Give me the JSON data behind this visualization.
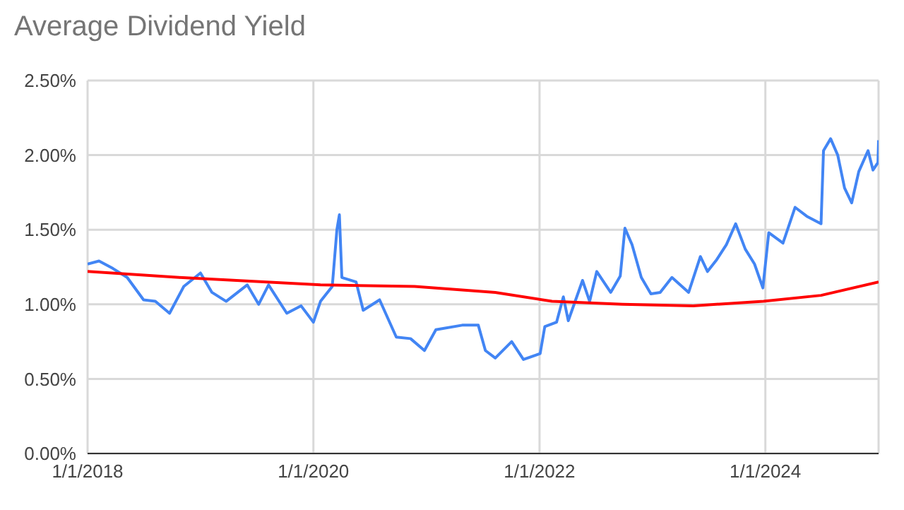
{
  "chart_data": {
    "type": "line",
    "title": "Average Dividend Yield",
    "xlim": [
      "2018-01-01",
      "2025-01-01"
    ],
    "xticks": [
      {
        "value": "2018-01-01",
        "label": "1/1/2018"
      },
      {
        "value": "2020-01-01",
        "label": "1/1/2020"
      },
      {
        "value": "2022-01-01",
        "label": "1/1/2022"
      },
      {
        "value": "2024-01-01",
        "label": "1/1/2024"
      }
    ],
    "ylim": [
      0,
      2.5
    ],
    "yticks": [
      {
        "value": 0,
        "label": "0.00%"
      },
      {
        "value": 0.5,
        "label": "0.50%"
      },
      {
        "value": 1,
        "label": "1.00%"
      },
      {
        "value": 1.5,
        "label": "1.50%"
      },
      {
        "value": 2,
        "label": "2.00%"
      },
      {
        "value": 2.5,
        "label": "2.50%"
      }
    ],
    "grid": true,
    "marker": "none",
    "line_style": "solid",
    "series": [
      {
        "color": "#4285f4",
        "x": [
          "2018-01-01",
          "2018-02-07",
          "2018-03-24",
          "2018-05-09",
          "2018-07-01",
          "2018-08-08",
          "2018-09-23",
          "2018-11-08",
          "2019-01-01",
          "2019-02-07",
          "2019-03-25",
          "2019-06-01",
          "2019-07-08",
          "2019-08-09",
          "2019-10-07",
          "2019-11-22",
          "2020-01-01",
          "2020-01-24",
          "2020-03-02",
          "2020-03-17",
          "2020-03-25",
          "2020-04-02",
          "2020-05-18",
          "2020-06-10",
          "2020-08-02",
          "2020-09-25",
          "2020-11-10",
          "2020-12-25",
          "2021-01-31",
          "2021-04-26",
          "2021-06-17",
          "2021-07-10",
          "2021-08-11",
          "2021-10-03",
          "2021-11-10",
          "2022-01-03",
          "2022-01-18",
          "2022-02-25",
          "2022-03-19",
          "2022-04-04",
          "2022-05-20",
          "2022-06-12",
          "2022-07-05",
          "2022-08-19",
          "2022-09-19",
          "2022-10-04",
          "2022-10-27",
          "2022-11-26",
          "2022-12-27",
          "2023-01-26",
          "2023-03-05",
          "2023-04-28",
          "2023-06-05",
          "2023-06-28",
          "2023-07-28",
          "2023-08-28",
          "2023-09-27",
          "2023-10-28",
          "2023-11-27",
          "2023-12-24",
          "2024-01-12",
          "2024-02-27",
          "2024-04-06",
          "2024-05-14",
          "2024-06-29",
          "2024-07-07",
          "2024-07-30",
          "2024-08-22",
          "2024-09-13",
          "2024-10-06",
          "2024-10-29",
          "2024-11-28",
          "2024-12-14",
          "2024-12-30",
          "2025-01-01"
        ],
        "values": [
          1.27,
          1.29,
          1.24,
          1.18,
          1.03,
          1.02,
          0.94,
          1.12,
          1.21,
          1.08,
          1.02,
          1.13,
          1.0,
          1.13,
          0.94,
          0.99,
          0.88,
          1.02,
          1.12,
          1.5,
          1.6,
          1.18,
          1.15,
          0.96,
          1.03,
          0.78,
          0.77,
          0.69,
          0.83,
          0.86,
          0.86,
          0.69,
          0.64,
          0.75,
          0.63,
          0.67,
          0.85,
          0.88,
          1.05,
          0.89,
          1.16,
          1.02,
          1.22,
          1.08,
          1.19,
          1.51,
          1.4,
          1.18,
          1.07,
          1.08,
          1.18,
          1.08,
          1.32,
          1.22,
          1.3,
          1.4,
          1.54,
          1.37,
          1.27,
          1.11,
          1.48,
          1.41,
          1.65,
          1.59,
          1.54,
          2.03,
          2.11,
          2.0,
          1.78,
          1.68,
          1.89,
          2.03,
          1.9,
          1.95,
          2.1
        ]
      },
      {
        "color": "#ff0000",
        "x": [
          "2018-01-01",
          "2018-10-24",
          "2020-01-24",
          "2020-11-23",
          "2021-08-11",
          "2022-02-10",
          "2022-09-26",
          "2023-05-13",
          "2023-12-26",
          "2024-06-29",
          "2025-01-01"
        ],
        "values": [
          1.22,
          1.18,
          1.13,
          1.12,
          1.08,
          1.02,
          1.0,
          0.99,
          1.02,
          1.06,
          1.15
        ]
      }
    ]
  }
}
